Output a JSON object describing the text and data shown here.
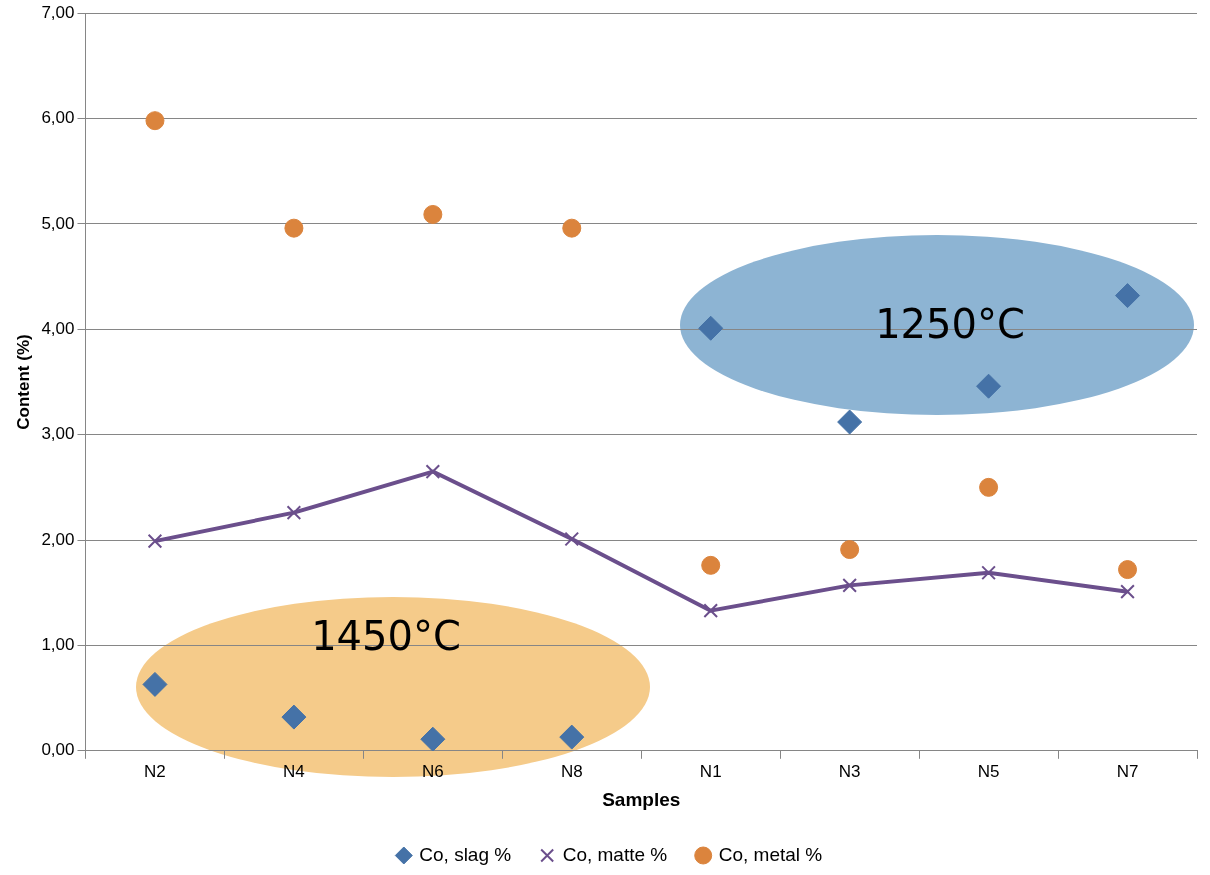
{
  "chart_data": {
    "type": "scatter",
    "xlabel": "Samples",
    "ylabel": "Content (%)",
    "categories": [
      "N2",
      "N4",
      "N6",
      "N8",
      "N1",
      "N3",
      "N5",
      "N7"
    ],
    "series": [
      {
        "name": "Co, slag %",
        "type": "scatter",
        "marker": "diamond",
        "color": "#4572a7",
        "values": [
          0.63,
          0.32,
          0.11,
          0.13,
          4.01,
          3.12,
          3.46,
          4.32
        ]
      },
      {
        "name": "Co, matte %",
        "type": "line",
        "marker": "cross",
        "line_style": "solid",
        "color": "#6b4f8c",
        "values": [
          1.99,
          2.26,
          2.65,
          2.01,
          1.33,
          1.57,
          1.69,
          1.51
        ]
      },
      {
        "name": "Co, metal %",
        "type": "scatter",
        "marker": "circle",
        "color": "#db843d",
        "values": [
          5.98,
          4.96,
          5.09,
          4.96,
          1.76,
          1.91,
          2.5,
          1.72
        ]
      }
    ],
    "ylim": [
      0,
      7
    ],
    "yticks": [
      {
        "value": 0,
        "label": "0,00"
      },
      {
        "value": 1,
        "label": "1,00"
      },
      {
        "value": 2,
        "label": "2,00"
      },
      {
        "value": 3,
        "label": "3,00"
      },
      {
        "value": 4,
        "label": "4,00"
      },
      {
        "value": 5,
        "label": "5,00"
      },
      {
        "value": 6,
        "label": "6,00"
      },
      {
        "value": 7,
        "label": "7,00"
      }
    ],
    "grid": "y",
    "legend": "bottom",
    "annotations": [
      "1450°C",
      "1250°C"
    ]
  }
}
